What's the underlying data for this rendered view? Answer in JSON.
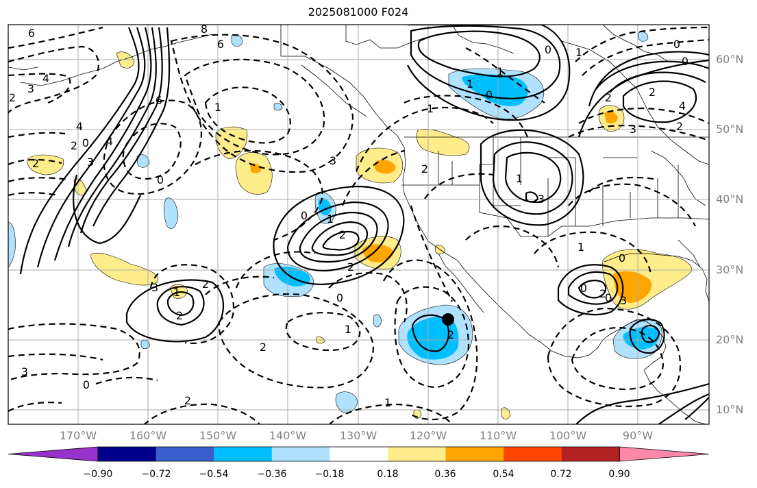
{
  "title": "2025081000 F024",
  "lat_labels": [
    "60°N",
    "50°N",
    "40°N",
    "30°N",
    "20°N",
    "10°N"
  ],
  "lon_labels": [
    "170°W",
    "160°W",
    "150°W",
    "140°W",
    "130°W",
    "120°W",
    "110°W",
    "100°W",
    "90°W"
  ],
  "colorbar": {
    "colors": [
      "#9932cc",
      "#00008b",
      "#3a5fcd",
      "#00bfff",
      "#b0e2ff",
      "#ffffff",
      "#ffec8b",
      "#ffa500",
      "#ff4500",
      "#b22222",
      "#ff88aa"
    ],
    "labels": [
      "−0.90",
      "−0.72",
      "−0.54",
      "−0.36",
      "−0.18",
      "0.18",
      "0.36",
      "0.54",
      "0.72",
      "0.90"
    ]
  },
  "contour_labels": [
    "6",
    "8",
    "6",
    "4",
    "3",
    "2",
    "4",
    "6",
    "1",
    "0",
    "2",
    "3",
    "4",
    "2",
    "0",
    "3",
    "1",
    "2",
    "2",
    "0",
    "1",
    "2",
    "3",
    "2",
    "0",
    "1",
    "2",
    "3",
    "0",
    "2",
    "1",
    "2",
    "1",
    "1",
    "0",
    "0",
    "1",
    "2",
    "4",
    "2",
    "3",
    "2",
    "0",
    "0",
    "1",
    "3",
    "2",
    "1",
    "0",
    "2",
    "0",
    "3",
    "1",
    "0"
  ],
  "marker": "filled-circle"
}
